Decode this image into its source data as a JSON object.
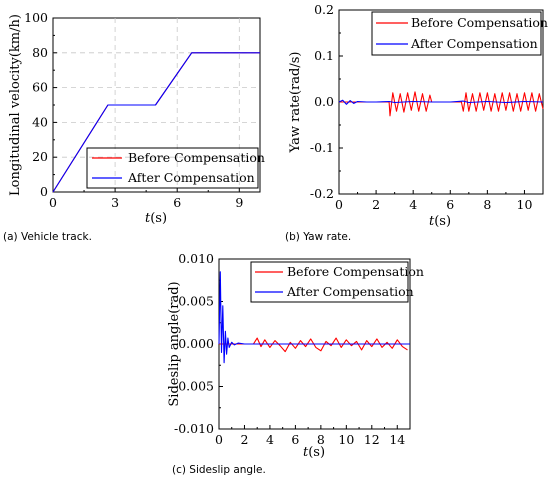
{
  "colors": {
    "before": "#ff0000",
    "after": "#0000ff",
    "axis": "#000000",
    "grid": "#c8c8c8"
  },
  "chart_data": [
    {
      "id": "a",
      "type": "line",
      "title": "",
      "caption": "(a) Vehicle track.",
      "xlabel_italic": "t",
      "xlabel_unit": "(s)",
      "ylabel": "Longitudinal velocity(km/h)",
      "xlim": [
        0,
        10
      ],
      "ylim": [
        0,
        100
      ],
      "xticks": [
        0,
        3,
        6,
        9
      ],
      "yticks": [
        0,
        20,
        40,
        60,
        80,
        100
      ],
      "grid": true,
      "legend_position": "bottom-right",
      "series": [
        {
          "name": "Before Compensation",
          "color": "#ff0000",
          "x": [
            0,
            2.65,
            4.95,
            6.7,
            10
          ],
          "y": [
            0,
            50,
            50,
            80,
            80
          ]
        },
        {
          "name": "After Compensation",
          "color": "#0000ff",
          "x": [
            0,
            2.65,
            4.95,
            6.7,
            10
          ],
          "y": [
            0,
            50,
            50,
            80,
            80
          ]
        }
      ]
    },
    {
      "id": "b",
      "type": "line",
      "title": "",
      "caption": "(b) Yaw rate.",
      "xlabel_italic": "t",
      "xlabel_unit": "(s)",
      "ylabel": "Yaw rate(rad/s)",
      "xlim": [
        0,
        11
      ],
      "ylim": [
        -0.2,
        0.2
      ],
      "xticks": [
        0,
        2,
        4,
        6,
        8,
        10
      ],
      "yticks": [
        -0.2,
        -0.1,
        0.0,
        0.1,
        0.2
      ],
      "ytick_labels": [
        "-0.2",
        "-0.1",
        "0.0",
        "0.1",
        "0.2"
      ],
      "grid": false,
      "legend_position": "top-right",
      "series": [
        {
          "name": "Before Compensation",
          "color": "#ff0000",
          "x": [
            0,
            2.7,
            2.75,
            2.9,
            3.1,
            3.3,
            3.5,
            3.7,
            3.9,
            4.1,
            4.3,
            4.5,
            4.7,
            4.9,
            5.0,
            5.1,
            6.6,
            6.7,
            6.85,
            7.0,
            7.2,
            7.4,
            7.6,
            7.8,
            8.0,
            8.2,
            8.4,
            8.6,
            8.8,
            9.0,
            9.2,
            9.4,
            9.6,
            9.8,
            10.0,
            10.2,
            10.4,
            10.6,
            10.8,
            11.0
          ],
          "y": [
            0,
            0,
            -0.03,
            0.02,
            -0.02,
            0.018,
            -0.022,
            0.02,
            -0.018,
            0.022,
            -0.02,
            0.018,
            -0.02,
            0.015,
            0,
            0,
            0,
            -0.02,
            0.02,
            -0.02,
            0.018,
            -0.02,
            0.02,
            -0.018,
            0.02,
            -0.02,
            0.018,
            -0.02,
            0.02,
            -0.018,
            0.02,
            -0.02,
            0.018,
            -0.02,
            0.02,
            -0.018,
            0.02,
            -0.02,
            0.018,
            -0.015
          ]
        },
        {
          "name": "After Compensation",
          "color": "#0000ff",
          "x": [
            0,
            0.2,
            0.4,
            0.6,
            0.8,
            1.0,
            1.5,
            2.0,
            2.7,
            3.0,
            4.0,
            5.0,
            6.0,
            6.7,
            7.0,
            8.0,
            9.0,
            10.0,
            11.0
          ],
          "y": [
            0,
            0.004,
            -0.005,
            0.003,
            -0.003,
            0.001,
            0.0,
            0.0,
            0.001,
            -0.001,
            0.001,
            0.0,
            0.0,
            0.002,
            -0.001,
            0.001,
            -0.001,
            0.001,
            0.0
          ]
        }
      ]
    },
    {
      "id": "c",
      "type": "line",
      "title": "",
      "caption": "(c) Sideslip angle.",
      "xlabel_italic": "t",
      "xlabel_unit": "(s)",
      "ylabel": "Sideslip angle(rad)",
      "xlim": [
        0,
        15
      ],
      "ylim": [
        -0.01,
        0.01
      ],
      "xticks": [
        0,
        2,
        4,
        6,
        8,
        10,
        12,
        14
      ],
      "yticks": [
        -0.01,
        -0.005,
        0.0,
        0.005,
        0.01
      ],
      "ytick_labels": [
        "-0.010",
        "-0.005",
        "0.000",
        "0.005",
        "0.010"
      ],
      "grid": false,
      "legend_position": "top-right",
      "series": [
        {
          "name": "Before Compensation",
          "color": "#ff0000",
          "x": [
            0,
            2.7,
            3.0,
            3.3,
            3.6,
            4.0,
            4.4,
            4.8,
            5.2,
            5.6,
            6.0,
            6.4,
            6.8,
            7.2,
            7.6,
            8.0,
            8.4,
            8.8,
            9.2,
            9.6,
            10.0,
            10.4,
            10.8,
            11.2,
            11.6,
            12.0,
            12.4,
            12.8,
            13.2,
            13.6,
            14.0,
            14.4,
            14.8
          ],
          "y": [
            0,
            0,
            0.0007,
            -0.0003,
            0.0005,
            -0.0004,
            0.0004,
            -0.0002,
            -0.0009,
            0.0002,
            -0.0005,
            0.0004,
            -0.0003,
            0.0006,
            -0.0004,
            -0.0008,
            0.0003,
            -0.0002,
            0.0007,
            -0.0004,
            0.0005,
            -0.0002,
            0.0003,
            -0.0007,
            0.0004,
            -0.0003,
            0.0006,
            -0.0004,
            0.0002,
            -0.0005,
            0.0005,
            -0.0003,
            -0.0007
          ]
        },
        {
          "name": "After Compensation",
          "color": "#0000ff",
          "x": [
            0,
            0.1,
            0.2,
            0.3,
            0.4,
            0.5,
            0.6,
            0.7,
            0.8,
            1.0,
            1.2,
            1.5,
            2.0,
            3.0,
            4.0,
            6.0,
            8.0,
            10.0,
            12.0,
            15.0
          ],
          "y": [
            0,
            0.0085,
            -0.001,
            0.0045,
            -0.0022,
            0.0015,
            -0.0012,
            0.0007,
            -0.0004,
            0.0002,
            -0.0001,
            0.0001,
            0.0,
            0.0,
            0.0,
            0.0,
            0.0,
            0.0,
            0.0,
            0.0
          ]
        }
      ]
    }
  ]
}
